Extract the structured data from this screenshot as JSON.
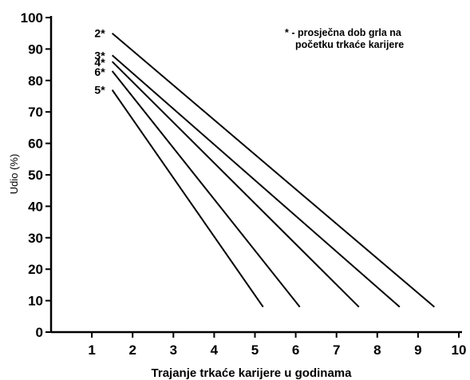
{
  "chart_data": {
    "type": "line",
    "xlabel": "Trajanje trkaće karijere u godinama",
    "ylabel": "Udio (%)",
    "xlim": [
      0,
      10
    ],
    "ylim": [
      0,
      100
    ],
    "x_ticks": [
      1,
      2,
      3,
      4,
      5,
      6,
      7,
      8,
      9,
      10
    ],
    "y_ticks": [
      0,
      10,
      20,
      30,
      40,
      50,
      60,
      70,
      80,
      90,
      100
    ],
    "grid": false,
    "legend": "none",
    "annotation": {
      "line1": "* - prosječna dob grla na",
      "line2": "početku trkaće karijere"
    },
    "series": [
      {
        "name": "2*",
        "x": [
          1.5,
          9.4
        ],
        "y": [
          95,
          8
        ]
      },
      {
        "name": "3*",
        "x": [
          1.5,
          8.55
        ],
        "y": [
          88,
          8
        ]
      },
      {
        "name": "4*",
        "x": [
          1.5,
          7.55
        ],
        "y": [
          86,
          8
        ]
      },
      {
        "name": "6*",
        "x": [
          1.5,
          6.1
        ],
        "y": [
          83,
          8
        ]
      },
      {
        "name": "5*",
        "x": [
          1.5,
          5.2
        ],
        "y": [
          77,
          8
        ]
      }
    ]
  }
}
